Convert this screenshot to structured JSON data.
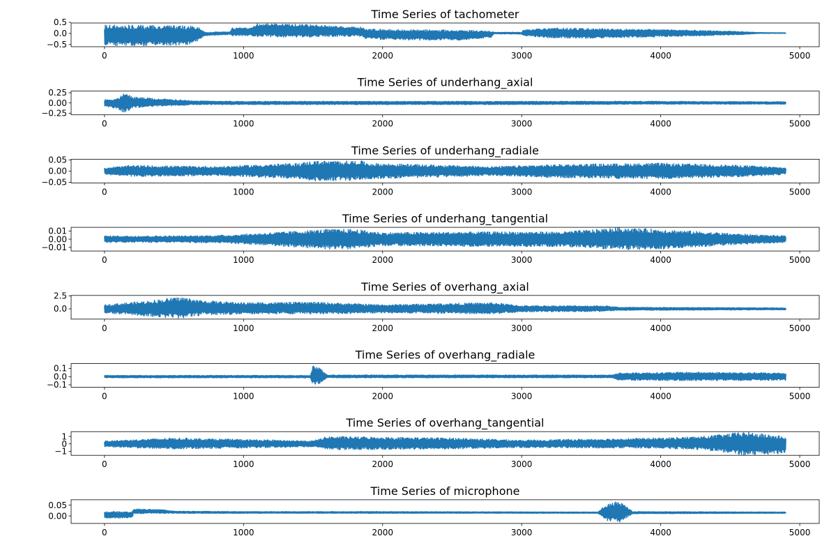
{
  "chart_data": [
    {
      "type": "line",
      "title": "Time Series of tachometer",
      "xlim": [
        -240,
        5140
      ],
      "xticks": [
        0,
        1000,
        2000,
        3000,
        4000,
        5000
      ],
      "xtick_labels": [
        "0",
        "1000",
        "2000",
        "3000",
        "4000",
        "5000"
      ],
      "ylim": [
        -0.6,
        0.47
      ],
      "yticks": [
        -0.5,
        0.0,
        0.5
      ],
      "ytick_labels": [
        "−0.5",
        "0.0",
        "0.5"
      ],
      "color": "#1f77b4",
      "x_range": [
        0,
        4900
      ],
      "envelope": [
        [
          0,
          0.38,
          -0.55
        ],
        [
          300,
          0.37,
          -0.55
        ],
        [
          600,
          0.34,
          -0.52
        ],
        [
          690,
          0.26,
          -0.3
        ],
        [
          720,
          0.05,
          -0.1
        ],
        [
          900,
          0.08,
          -0.05
        ],
        [
          920,
          0.25,
          -0.1
        ],
        [
          1050,
          0.25,
          -0.1
        ],
        [
          1100,
          0.45,
          -0.15
        ],
        [
          1400,
          0.42,
          -0.18
        ],
        [
          1850,
          0.28,
          -0.12
        ],
        [
          1880,
          0.2,
          -0.25
        ],
        [
          2200,
          0.17,
          -0.3
        ],
        [
          2600,
          0.15,
          -0.3
        ],
        [
          2780,
          0.1,
          -0.18
        ],
        [
          2800,
          0.05,
          -0.02
        ],
        [
          3000,
          0.05,
          -0.03
        ],
        [
          3010,
          0.15,
          -0.1
        ],
        [
          3200,
          0.25,
          -0.2
        ],
        [
          3500,
          0.22,
          -0.22
        ],
        [
          4200,
          0.15,
          -0.12
        ],
        [
          4600,
          0.08,
          -0.05
        ],
        [
          4700,
          0.04,
          0.0
        ],
        [
          4900,
          0.03,
          0.0
        ]
      ]
    },
    {
      "type": "line",
      "title": "Time Series of underhang_axial",
      "xlim": [
        -240,
        5140
      ],
      "xticks": [
        0,
        1000,
        2000,
        3000,
        4000,
        5000
      ],
      "xtick_labels": [
        "0",
        "1000",
        "2000",
        "3000",
        "4000",
        "5000"
      ],
      "ylim": [
        -0.29,
        0.29
      ],
      "yticks": [
        -0.25,
        0.0,
        0.25
      ],
      "ytick_labels": [
        "−0.25",
        "0.00",
        "0.25"
      ],
      "color": "#1f77b4",
      "x_range": [
        0,
        4900
      ],
      "envelope": [
        [
          0,
          0.08,
          -0.08
        ],
        [
          100,
          0.12,
          -0.15
        ],
        [
          150,
          0.26,
          -0.26
        ],
        [
          200,
          0.15,
          -0.12
        ],
        [
          400,
          0.1,
          -0.08
        ],
        [
          700,
          0.05,
          -0.04
        ],
        [
          1000,
          0.04,
          -0.04
        ],
        [
          2000,
          0.04,
          -0.04
        ],
        [
          3000,
          0.04,
          -0.04
        ],
        [
          4000,
          0.04,
          -0.03
        ],
        [
          4900,
          0.03,
          -0.03
        ]
      ]
    },
    {
      "type": "line",
      "title": "Time Series of underhang_radiale",
      "xlim": [
        -240,
        5140
      ],
      "xticks": [
        0,
        1000,
        2000,
        3000,
        4000,
        5000
      ],
      "xtick_labels": [
        "0",
        "1000",
        "2000",
        "3000",
        "4000",
        "5000"
      ],
      "ylim": [
        -0.053,
        0.053
      ],
      "yticks": [
        -0.05,
        0.0,
        0.05
      ],
      "ytick_labels": [
        "−0.05",
        "0.00",
        "0.05"
      ],
      "color": "#1f77b4",
      "x_range": [
        0,
        4900
      ],
      "envelope": [
        [
          0,
          0.015,
          -0.015
        ],
        [
          200,
          0.025,
          -0.025
        ],
        [
          800,
          0.02,
          -0.02
        ],
        [
          1400,
          0.035,
          -0.035
        ],
        [
          1500,
          0.045,
          -0.045
        ],
        [
          1850,
          0.045,
          -0.04
        ],
        [
          1900,
          0.035,
          -0.035
        ],
        [
          2800,
          0.02,
          -0.02
        ],
        [
          3300,
          0.03,
          -0.03
        ],
        [
          4000,
          0.035,
          -0.035
        ],
        [
          4600,
          0.025,
          -0.025
        ],
        [
          4900,
          0.015,
          -0.015
        ]
      ]
    },
    {
      "type": "line",
      "title": "Time Series of underhang_tangential",
      "xlim": [
        -240,
        5140
      ],
      "xticks": [
        0,
        1000,
        2000,
        3000,
        4000,
        5000
      ],
      "xtick_labels": [
        "0",
        "1000",
        "2000",
        "3000",
        "4000",
        "5000"
      ],
      "ylim": [
        -0.0145,
        0.0145
      ],
      "yticks": [
        -0.01,
        0.0,
        0.01
      ],
      "ytick_labels": [
        "−0.01",
        "0.00",
        "0.01"
      ],
      "color": "#1f77b4",
      "x_range": [
        0,
        4900
      ],
      "envelope": [
        [
          0,
          0.004,
          -0.004
        ],
        [
          600,
          0.004,
          -0.004
        ],
        [
          900,
          0.005,
          -0.005
        ],
        [
          1200,
          0.008,
          -0.008
        ],
        [
          1600,
          0.012,
          -0.012
        ],
        [
          1800,
          0.012,
          -0.012
        ],
        [
          2000,
          0.008,
          -0.008
        ],
        [
          2700,
          0.009,
          -0.009
        ],
        [
          3300,
          0.009,
          -0.009
        ],
        [
          3700,
          0.014,
          -0.013
        ],
        [
          4000,
          0.012,
          -0.012
        ],
        [
          4600,
          0.006,
          -0.006
        ],
        [
          4900,
          0.004,
          -0.004
        ]
      ]
    },
    {
      "type": "line",
      "title": "Time Series of overhang_axial",
      "xlim": [
        -240,
        5140
      ],
      "xticks": [
        0,
        1000,
        2000,
        3000,
        4000,
        5000
      ],
      "xtick_labels": [
        "0",
        "1000",
        "2000",
        "3000",
        "4000",
        "5000"
      ],
      "ylim": [
        -2.0,
        2.6
      ],
      "yticks": [
        0.0,
        2.5
      ],
      "ytick_labels": [
        "0.0",
        "2.5"
      ],
      "color": "#1f77b4",
      "x_range": [
        0,
        4900
      ],
      "envelope": [
        [
          0,
          0.8,
          -0.8
        ],
        [
          300,
          1.5,
          -1.4
        ],
        [
          550,
          2.3,
          -1.9
        ],
        [
          700,
          1.6,
          -1.2
        ],
        [
          1000,
          1.2,
          -1.0
        ],
        [
          1500,
          1.3,
          -1.0
        ],
        [
          2000,
          0.8,
          -0.8
        ],
        [
          2800,
          1.2,
          -1.0
        ],
        [
          3000,
          0.6,
          -0.6
        ],
        [
          3600,
          0.6,
          -0.5
        ],
        [
          3700,
          0.3,
          -0.3
        ],
        [
          4900,
          0.2,
          -0.2
        ]
      ]
    },
    {
      "type": "line",
      "title": "Time Series of overhang_radiale",
      "xlim": [
        -240,
        5140
      ],
      "xticks": [
        0,
        1000,
        2000,
        3000,
        4000,
        5000
      ],
      "xtick_labels": [
        "0",
        "1000",
        "2000",
        "3000",
        "4000",
        "5000"
      ],
      "ylim": [
        -0.13,
        0.16
      ],
      "yticks": [
        -0.1,
        0.0,
        0.1
      ],
      "ytick_labels": [
        "−0.1",
        "0.0",
        "0.1"
      ],
      "color": "#1f77b4",
      "x_range": [
        0,
        4900
      ],
      "envelope": [
        [
          0,
          0.015,
          -0.015
        ],
        [
          1480,
          0.015,
          -0.015
        ],
        [
          1500,
          0.15,
          -0.12
        ],
        [
          1560,
          0.1,
          -0.08
        ],
        [
          1600,
          0.02,
          -0.015
        ],
        [
          3650,
          0.02,
          -0.015
        ],
        [
          3700,
          0.045,
          -0.045
        ],
        [
          4200,
          0.055,
          -0.05
        ],
        [
          4900,
          0.045,
          -0.045
        ]
      ]
    },
    {
      "type": "line",
      "title": "Time Series of overhang_tangential",
      "xlim": [
        -240,
        5140
      ],
      "xticks": [
        0,
        1000,
        2000,
        3000,
        4000,
        5000
      ],
      "xtick_labels": [
        "0",
        "1000",
        "2000",
        "3000",
        "4000",
        "5000"
      ],
      "ylim": [
        -1.55,
        1.65
      ],
      "yticks": [
        -1.0,
        0.0,
        1.0
      ],
      "ytick_labels": [
        "−1",
        "0",
        "1"
      ],
      "color": "#1f77b4",
      "x_range": [
        0,
        4900
      ],
      "envelope": [
        [
          0,
          0.4,
          -0.4
        ],
        [
          500,
          0.8,
          -0.7
        ],
        [
          1500,
          0.4,
          -0.4
        ],
        [
          1600,
          1.0,
          -0.8
        ],
        [
          2500,
          0.8,
          -0.7
        ],
        [
          3000,
          0.5,
          -0.5
        ],
        [
          4000,
          0.8,
          -0.6
        ],
        [
          4300,
          1.0,
          -0.8
        ],
        [
          4600,
          1.6,
          -1.5
        ],
        [
          4900,
          1.0,
          -1.3
        ]
      ]
    },
    {
      "type": "line",
      "title": "Time Series of microphone",
      "xlim": [
        -240,
        5140
      ],
      "xticks": [
        0,
        1000,
        2000,
        3000,
        4000,
        5000
      ],
      "xtick_labels": [
        "0",
        "1000",
        "2000",
        "3000",
        "4000",
        "5000"
      ],
      "ylim": [
        -0.035,
        0.075
      ],
      "yticks": [
        0.0,
        0.05
      ],
      "ytick_labels": [
        "0.00",
        "0.05"
      ],
      "color": "#1f77b4",
      "x_range": [
        0,
        4900
      ],
      "envelope": [
        [
          0,
          0.02,
          -0.01
        ],
        [
          200,
          0.02,
          -0.01
        ],
        [
          210,
          0.032,
          0.01
        ],
        [
          400,
          0.03,
          0.012
        ],
        [
          500,
          0.022,
          0.012
        ],
        [
          1000,
          0.02,
          0.012
        ],
        [
          2000,
          0.02,
          0.012
        ],
        [
          3550,
          0.018,
          0.012
        ],
        [
          3600,
          0.05,
          -0.02
        ],
        [
          3700,
          0.07,
          -0.03
        ],
        [
          3800,
          0.02,
          0.01
        ],
        [
          4900,
          0.018,
          0.012
        ]
      ]
    }
  ]
}
